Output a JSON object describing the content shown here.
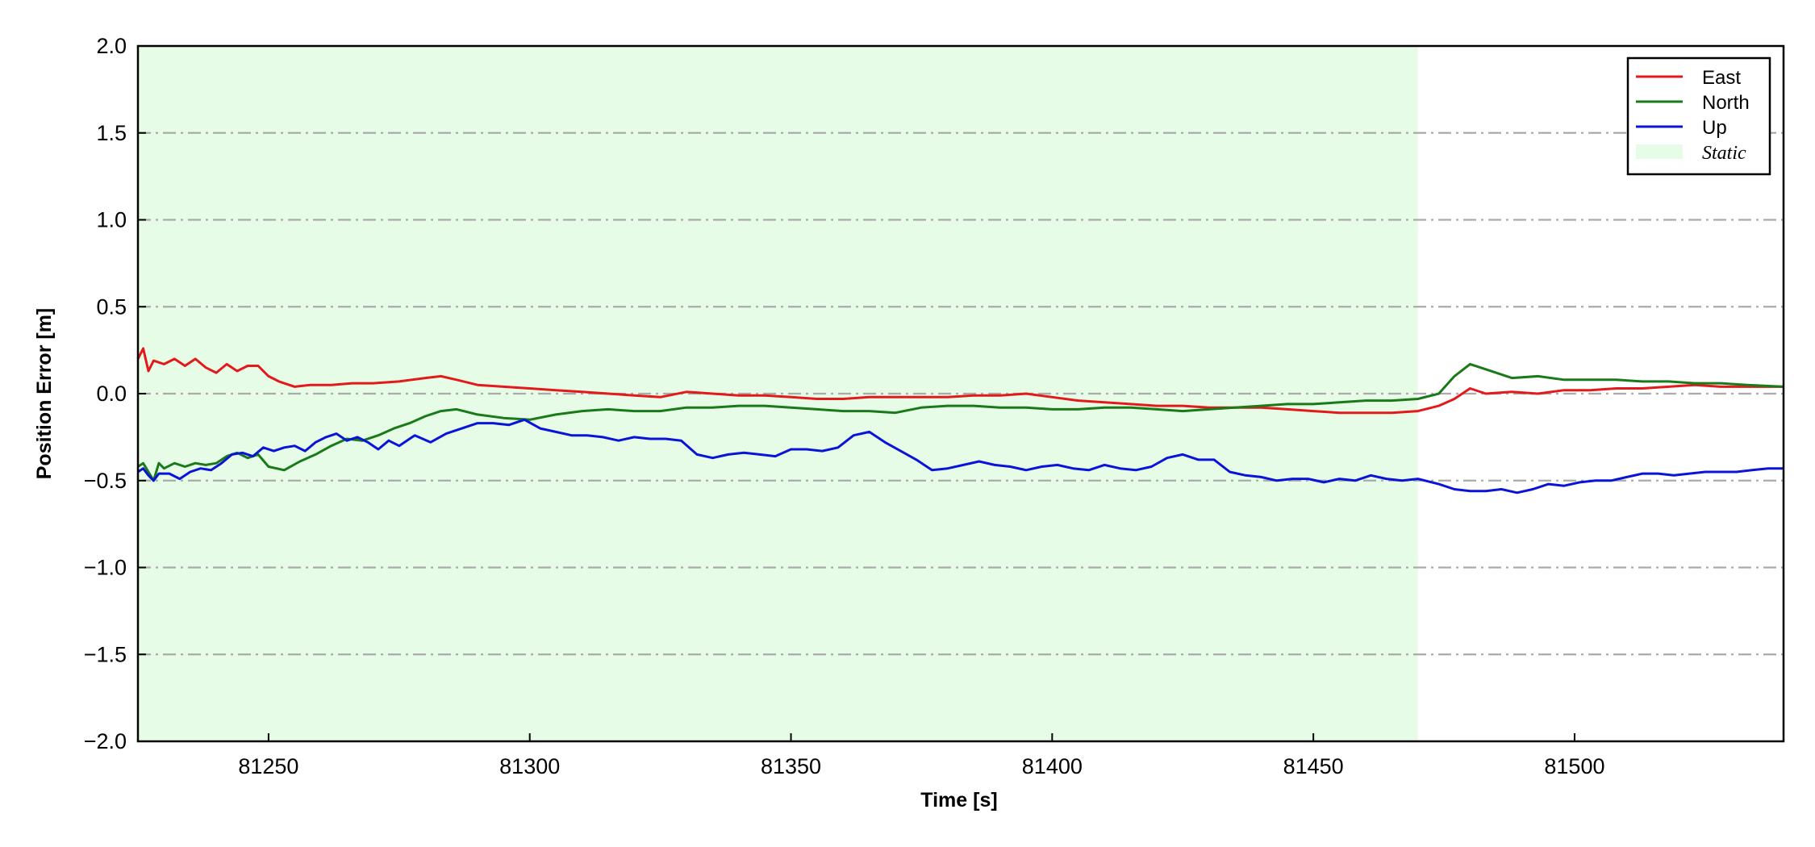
{
  "chart_data": {
    "type": "line",
    "xlabel": "Time [s]",
    "ylabel": "Position Error [m]",
    "xlim": [
      81225,
      81540
    ],
    "ylim": [
      -2.0,
      2.0
    ],
    "x_ticks": [
      81250,
      81300,
      81350,
      81400,
      81450,
      81500
    ],
    "y_ticks": [
      -2.0,
      -1.5,
      -1.0,
      -0.5,
      0.0,
      0.5,
      1.0,
      1.5,
      2.0
    ],
    "x_tick_labels": [
      "81250",
      "81300",
      "81350",
      "81400",
      "81450",
      "81500"
    ],
    "y_tick_labels": [
      "−2.0",
      "−1.5",
      "−1.0",
      "−0.5",
      "0.0",
      "0.5",
      "1.0",
      "1.5",
      "2.0"
    ],
    "grid": "horizontal dash-dot",
    "legend_position": "top-right",
    "static_region": {
      "label": "Static",
      "x_start": 81225,
      "x_end": 81470,
      "color": "#e6fce6"
    },
    "series": [
      {
        "name": "East",
        "color": "#e31a1c",
        "points": [
          [
            81225,
            0.2
          ],
          [
            81226,
            0.26
          ],
          [
            81227,
            0.13
          ],
          [
            81228,
            0.19
          ],
          [
            81230,
            0.17
          ],
          [
            81232,
            0.2
          ],
          [
            81234,
            0.16
          ],
          [
            81236,
            0.2
          ],
          [
            81238,
            0.15
          ],
          [
            81240,
            0.12
          ],
          [
            81242,
            0.17
          ],
          [
            81244,
            0.13
          ],
          [
            81246,
            0.16
          ],
          [
            81248,
            0.16
          ],
          [
            81250,
            0.1
          ],
          [
            81252,
            0.07
          ],
          [
            81255,
            0.04
          ],
          [
            81258,
            0.05
          ],
          [
            81262,
            0.05
          ],
          [
            81266,
            0.06
          ],
          [
            81270,
            0.06
          ],
          [
            81275,
            0.07
          ],
          [
            81280,
            0.09
          ],
          [
            81283,
            0.1
          ],
          [
            81286,
            0.08
          ],
          [
            81290,
            0.05
          ],
          [
            81295,
            0.04
          ],
          [
            81300,
            0.03
          ],
          [
            81305,
            0.02
          ],
          [
            81310,
            0.01
          ],
          [
            81315,
            0.0
          ],
          [
            81320,
            -0.01
          ],
          [
            81325,
            -0.02
          ],
          [
            81330,
            0.01
          ],
          [
            81335,
            0.0
          ],
          [
            81340,
            -0.01
          ],
          [
            81345,
            -0.01
          ],
          [
            81350,
            -0.02
          ],
          [
            81355,
            -0.03
          ],
          [
            81360,
            -0.03
          ],
          [
            81365,
            -0.02
          ],
          [
            81370,
            -0.02
          ],
          [
            81375,
            -0.02
          ],
          [
            81380,
            -0.02
          ],
          [
            81385,
            -0.01
          ],
          [
            81390,
            -0.01
          ],
          [
            81395,
            0.0
          ],
          [
            81400,
            -0.02
          ],
          [
            81405,
            -0.04
          ],
          [
            81410,
            -0.05
          ],
          [
            81415,
            -0.06
          ],
          [
            81420,
            -0.07
          ],
          [
            81425,
            -0.07
          ],
          [
            81430,
            -0.08
          ],
          [
            81435,
            -0.08
          ],
          [
            81440,
            -0.08
          ],
          [
            81445,
            -0.09
          ],
          [
            81450,
            -0.1
          ],
          [
            81455,
            -0.11
          ],
          [
            81460,
            -0.11
          ],
          [
            81465,
            -0.11
          ],
          [
            81470,
            -0.1
          ],
          [
            81474,
            -0.07
          ],
          [
            81477,
            -0.03
          ],
          [
            81480,
            0.03
          ],
          [
            81483,
            0.0
          ],
          [
            81488,
            0.01
          ],
          [
            81493,
            0.0
          ],
          [
            81498,
            0.02
          ],
          [
            81503,
            0.02
          ],
          [
            81508,
            0.03
          ],
          [
            81513,
            0.03
          ],
          [
            81518,
            0.04
          ],
          [
            81523,
            0.05
          ],
          [
            81528,
            0.04
          ],
          [
            81533,
            0.04
          ],
          [
            81540,
            0.04
          ]
        ]
      },
      {
        "name": "North",
        "color": "#1a7a1a",
        "points": [
          [
            81225,
            -0.42
          ],
          [
            81226,
            -0.4
          ],
          [
            81227,
            -0.45
          ],
          [
            81228,
            -0.5
          ],
          [
            81229,
            -0.4
          ],
          [
            81230,
            -0.43
          ],
          [
            81232,
            -0.4
          ],
          [
            81234,
            -0.42
          ],
          [
            81236,
            -0.4
          ],
          [
            81238,
            -0.41
          ],
          [
            81240,
            -0.4
          ],
          [
            81242,
            -0.36
          ],
          [
            81244,
            -0.34
          ],
          [
            81246,
            -0.37
          ],
          [
            81248,
            -0.35
          ],
          [
            81250,
            -0.42
          ],
          [
            81253,
            -0.44
          ],
          [
            81256,
            -0.39
          ],
          [
            81259,
            -0.35
          ],
          [
            81262,
            -0.3
          ],
          [
            81265,
            -0.26
          ],
          [
            81268,
            -0.27
          ],
          [
            81271,
            -0.24
          ],
          [
            81274,
            -0.2
          ],
          [
            81277,
            -0.17
          ],
          [
            81280,
            -0.13
          ],
          [
            81283,
            -0.1
          ],
          [
            81286,
            -0.09
          ],
          [
            81290,
            -0.12
          ],
          [
            81295,
            -0.14
          ],
          [
            81300,
            -0.15
          ],
          [
            81305,
            -0.12
          ],
          [
            81310,
            -0.1
          ],
          [
            81315,
            -0.09
          ],
          [
            81320,
            -0.1
          ],
          [
            81325,
            -0.1
          ],
          [
            81330,
            -0.08
          ],
          [
            81335,
            -0.08
          ],
          [
            81340,
            -0.07
          ],
          [
            81345,
            -0.07
          ],
          [
            81350,
            -0.08
          ],
          [
            81355,
            -0.09
          ],
          [
            81360,
            -0.1
          ],
          [
            81365,
            -0.1
          ],
          [
            81370,
            -0.11
          ],
          [
            81375,
            -0.08
          ],
          [
            81380,
            -0.07
          ],
          [
            81385,
            -0.07
          ],
          [
            81390,
            -0.08
          ],
          [
            81395,
            -0.08
          ],
          [
            81400,
            -0.09
          ],
          [
            81405,
            -0.09
          ],
          [
            81410,
            -0.08
          ],
          [
            81415,
            -0.08
          ],
          [
            81420,
            -0.09
          ],
          [
            81425,
            -0.1
          ],
          [
            81430,
            -0.09
          ],
          [
            81435,
            -0.08
          ],
          [
            81440,
            -0.07
          ],
          [
            81445,
            -0.06
          ],
          [
            81450,
            -0.06
          ],
          [
            81455,
            -0.05
          ],
          [
            81460,
            -0.04
          ],
          [
            81465,
            -0.04
          ],
          [
            81470,
            -0.03
          ],
          [
            81474,
            0.0
          ],
          [
            81477,
            0.1
          ],
          [
            81480,
            0.17
          ],
          [
            81483,
            0.14
          ],
          [
            81488,
            0.09
          ],
          [
            81493,
            0.1
          ],
          [
            81498,
            0.08
          ],
          [
            81503,
            0.08
          ],
          [
            81508,
            0.08
          ],
          [
            81513,
            0.07
          ],
          [
            81518,
            0.07
          ],
          [
            81523,
            0.06
          ],
          [
            81528,
            0.06
          ],
          [
            81533,
            0.05
          ],
          [
            81540,
            0.04
          ]
        ]
      },
      {
        "name": "Up",
        "color": "#0a14d9",
        "points": [
          [
            81225,
            -0.45
          ],
          [
            81226,
            -0.43
          ],
          [
            81227,
            -0.47
          ],
          [
            81228,
            -0.5
          ],
          [
            81229,
            -0.46
          ],
          [
            81231,
            -0.46
          ],
          [
            81233,
            -0.49
          ],
          [
            81235,
            -0.45
          ],
          [
            81237,
            -0.43
          ],
          [
            81239,
            -0.44
          ],
          [
            81241,
            -0.4
          ],
          [
            81243,
            -0.35
          ],
          [
            81245,
            -0.34
          ],
          [
            81247,
            -0.36
          ],
          [
            81249,
            -0.31
          ],
          [
            81251,
            -0.33
          ],
          [
            81253,
            -0.31
          ],
          [
            81255,
            -0.3
          ],
          [
            81257,
            -0.33
          ],
          [
            81259,
            -0.28
          ],
          [
            81261,
            -0.25
          ],
          [
            81263,
            -0.23
          ],
          [
            81265,
            -0.27
          ],
          [
            81267,
            -0.25
          ],
          [
            81269,
            -0.28
          ],
          [
            81271,
            -0.32
          ],
          [
            81273,
            -0.27
          ],
          [
            81275,
            -0.3
          ],
          [
            81278,
            -0.24
          ],
          [
            81281,
            -0.28
          ],
          [
            81284,
            -0.23
          ],
          [
            81287,
            -0.2
          ],
          [
            81290,
            -0.17
          ],
          [
            81293,
            -0.17
          ],
          [
            81296,
            -0.18
          ],
          [
            81299,
            -0.15
          ],
          [
            81302,
            -0.2
          ],
          [
            81305,
            -0.22
          ],
          [
            81308,
            -0.24
          ],
          [
            81311,
            -0.24
          ],
          [
            81314,
            -0.25
          ],
          [
            81317,
            -0.27
          ],
          [
            81320,
            -0.25
          ],
          [
            81323,
            -0.26
          ],
          [
            81326,
            -0.26
          ],
          [
            81329,
            -0.27
          ],
          [
            81332,
            -0.35
          ],
          [
            81335,
            -0.37
          ],
          [
            81338,
            -0.35
          ],
          [
            81341,
            -0.34
          ],
          [
            81344,
            -0.35
          ],
          [
            81347,
            -0.36
          ],
          [
            81350,
            -0.32
          ],
          [
            81353,
            -0.32
          ],
          [
            81356,
            -0.33
          ],
          [
            81359,
            -0.31
          ],
          [
            81362,
            -0.24
          ],
          [
            81365,
            -0.22
          ],
          [
            81368,
            -0.28
          ],
          [
            81371,
            -0.33
          ],
          [
            81374,
            -0.38
          ],
          [
            81377,
            -0.44
          ],
          [
            81380,
            -0.43
          ],
          [
            81383,
            -0.41
          ],
          [
            81386,
            -0.39
          ],
          [
            81389,
            -0.41
          ],
          [
            81392,
            -0.42
          ],
          [
            81395,
            -0.44
          ],
          [
            81398,
            -0.42
          ],
          [
            81401,
            -0.41
          ],
          [
            81404,
            -0.43
          ],
          [
            81407,
            -0.44
          ],
          [
            81410,
            -0.41
          ],
          [
            81413,
            -0.43
          ],
          [
            81416,
            -0.44
          ],
          [
            81419,
            -0.42
          ],
          [
            81422,
            -0.37
          ],
          [
            81425,
            -0.35
          ],
          [
            81428,
            -0.38
          ],
          [
            81431,
            -0.38
          ],
          [
            81434,
            -0.45
          ],
          [
            81437,
            -0.47
          ],
          [
            81440,
            -0.48
          ],
          [
            81443,
            -0.5
          ],
          [
            81446,
            -0.49
          ],
          [
            81449,
            -0.49
          ],
          [
            81452,
            -0.51
          ],
          [
            81455,
            -0.49
          ],
          [
            81458,
            -0.5
          ],
          [
            81461,
            -0.47
          ],
          [
            81464,
            -0.49
          ],
          [
            81467,
            -0.5
          ],
          [
            81470,
            -0.49
          ],
          [
            81474,
            -0.52
          ],
          [
            81477,
            -0.55
          ],
          [
            81480,
            -0.56
          ],
          [
            81483,
            -0.56
          ],
          [
            81486,
            -0.55
          ],
          [
            81489,
            -0.57
          ],
          [
            81492,
            -0.55
          ],
          [
            81495,
            -0.52
          ],
          [
            81498,
            -0.53
          ],
          [
            81501,
            -0.51
          ],
          [
            81504,
            -0.5
          ],
          [
            81507,
            -0.5
          ],
          [
            81510,
            -0.48
          ],
          [
            81513,
            -0.46
          ],
          [
            81516,
            -0.46
          ],
          [
            81519,
            -0.47
          ],
          [
            81522,
            -0.46
          ],
          [
            81525,
            -0.45
          ],
          [
            81528,
            -0.45
          ],
          [
            81531,
            -0.45
          ],
          [
            81534,
            -0.44
          ],
          [
            81537,
            -0.43
          ],
          [
            81540,
            -0.43
          ]
        ]
      }
    ]
  }
}
